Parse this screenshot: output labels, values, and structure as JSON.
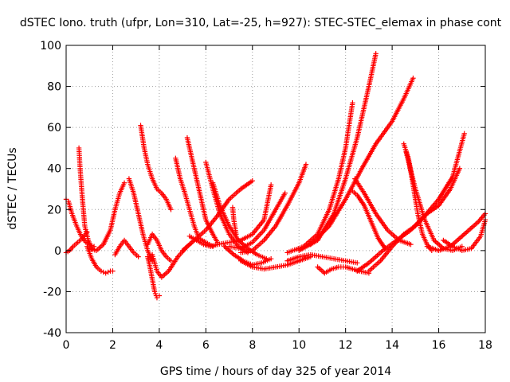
{
  "chart_data": {
    "type": "scatter",
    "title": "dSTEC Iono. truth (ufpr, Lon=310, Lat=-25, h=927): STEC-STEC_elemax in phase cont",
    "xlabel": "GPS time / hours of day 325 of year 2014",
    "ylabel": "dSTEC  / TECUs",
    "xlim": [
      0,
      18
    ],
    "ylim": [
      -40,
      100
    ],
    "x_ticks": [
      "0",
      "2",
      "4",
      "6",
      "8",
      "10",
      "12",
      "14",
      "16",
      "18"
    ],
    "y_ticks": [
      "-40",
      "-20",
      "0",
      "20",
      "40",
      "60",
      "80",
      "100"
    ],
    "grid": true,
    "marker": "plus",
    "color": "#ff0000",
    "series": [
      {
        "x": [
          0.0,
          0.1,
          0.25,
          0.45,
          0.65,
          0.85,
          1.0,
          1.2
        ],
        "y": [
          25,
          24,
          18,
          12,
          7,
          4,
          3,
          2
        ]
      },
      {
        "x": [
          0.0,
          0.15,
          0.3,
          0.5,
          0.7,
          0.9
        ],
        "y": [
          -1,
          0,
          2,
          4,
          6,
          9
        ]
      },
      {
        "x": [
          0.55,
          0.6,
          0.7,
          0.8,
          0.95,
          1.1
        ],
        "y": [
          50,
          40,
          25,
          12,
          5,
          1
        ]
      },
      {
        "x": [
          0.9,
          1.1,
          1.3,
          1.5,
          1.7,
          1.9,
          2.0
        ],
        "y": [
          2,
          -4,
          -8,
          -10,
          -11,
          -10,
          -10
        ]
      },
      {
        "x": [
          1.0,
          1.3,
          1.6,
          1.9,
          2.1,
          2.3,
          2.5
        ],
        "y": [
          1,
          0,
          3,
          10,
          20,
          28,
          33
        ]
      },
      {
        "x": [
          2.1,
          2.3,
          2.5,
          2.7,
          2.9,
          3.1
        ],
        "y": [
          -2,
          2,
          5,
          2,
          -1,
          -3
        ]
      },
      {
        "x": [
          2.7,
          2.9,
          3.1,
          3.3,
          3.5,
          3.7
        ],
        "y": [
          35,
          28,
          18,
          8,
          0,
          -5
        ]
      },
      {
        "x": [
          3.2,
          3.35,
          3.5,
          3.7,
          3.9,
          4.1,
          4.3,
          4.5
        ],
        "y": [
          61,
          50,
          42,
          35,
          30,
          28,
          25,
          20
        ]
      },
      {
        "x": [
          3.5,
          3.6,
          3.7,
          3.8,
          3.9,
          4.0
        ],
        "y": [
          -3,
          -8,
          -14,
          -20,
          -23,
          -22
        ]
      },
      {
        "x": [
          3.5,
          3.7,
          3.9,
          4.1,
          4.3,
          4.5
        ],
        "y": [
          3,
          8,
          5,
          0,
          -3,
          -5
        ]
      },
      {
        "x": [
          3.7,
          3.9,
          4.1,
          4.4,
          4.8,
          5.2,
          5.5
        ],
        "y": [
          -2,
          -10,
          -13,
          -10,
          -3,
          2,
          5
        ]
      },
      {
        "x": [
          4.7,
          4.9,
          5.1,
          5.3,
          5.5,
          5.7,
          6.0,
          6.3
        ],
        "y": [
          45,
          35,
          28,
          20,
          12,
          6,
          4,
          2
        ]
      },
      {
        "x": [
          5.2,
          5.4,
          5.6,
          5.8,
          6.0,
          6.3,
          6.5
        ],
        "y": [
          55,
          45,
          35,
          25,
          15,
          8,
          4
        ]
      },
      {
        "x": [
          5.3,
          5.6,
          5.9,
          6.2,
          6.5
        ],
        "y": [
          7,
          5,
          3,
          2,
          3
        ]
      },
      {
        "x": [
          5.0,
          5.5,
          6.0,
          6.5,
          7.0,
          7.5,
          8.0
        ],
        "y": [
          0,
          5,
          10,
          17,
          25,
          30,
          34
        ]
      },
      {
        "x": [
          6.0,
          6.3,
          6.6,
          7.0,
          7.4,
          7.8
        ],
        "y": [
          43,
          30,
          18,
          8,
          2,
          -1
        ]
      },
      {
        "x": [
          6.3,
          6.6,
          7.0,
          7.4,
          7.8,
          8.2,
          8.6
        ],
        "y": [
          33,
          22,
          12,
          5,
          1,
          -2,
          -4
        ]
      },
      {
        "x": [
          6.8,
          7.2,
          7.6,
          8.0,
          8.4,
          8.8
        ],
        "y": [
          2,
          -2,
          -5,
          -7,
          -6,
          -4
        ]
      },
      {
        "x": [
          7.15,
          7.2,
          7.3
        ],
        "y": [
          21,
          15,
          8
        ]
      },
      {
        "x": [
          6.5,
          7.0,
          7.5,
          8.0,
          8.5,
          8.8
        ],
        "y": [
          3,
          4,
          5,
          8,
          15,
          32
        ]
      },
      {
        "x": [
          7.0,
          7.5,
          8.0,
          8.5,
          9.0,
          9.4
        ],
        "y": [
          2,
          1,
          4,
          10,
          20,
          28
        ]
      },
      {
        "x": [
          7.5,
          8.0,
          8.5,
          9.0,
          9.5,
          10.0,
          10.3
        ],
        "y": [
          -1,
          0,
          5,
          12,
          22,
          33,
          42
        ]
      },
      {
        "x": [
          7.5,
          8.0,
          8.5,
          9.0,
          9.5,
          10.0,
          10.5
        ],
        "y": [
          -5,
          -8,
          -9,
          -8,
          -7,
          -5,
          -3
        ]
      },
      {
        "x": [
          9.5,
          10.0,
          10.5,
          11.0,
          11.5,
          12.0,
          12.5
        ],
        "y": [
          -5,
          -3,
          -2,
          -3,
          -4,
          -5,
          -6
        ]
      },
      {
        "x": [
          10.8,
          11.1,
          11.4,
          11.7,
          12.0,
          12.3,
          12.6,
          13.0
        ],
        "y": [
          -8,
          -11,
          -9,
          -8,
          -8,
          -9,
          -10,
          -11
        ]
      },
      {
        "x": [
          9.5,
          10.2,
          10.8,
          11.3,
          11.7,
          12.0,
          12.3
        ],
        "y": [
          -1,
          2,
          8,
          20,
          35,
          50,
          72
        ]
      },
      {
        "x": [
          10.0,
          10.8,
          11.5,
          12.0,
          12.5,
          13.0,
          13.3
        ],
        "y": [
          0,
          5,
          18,
          35,
          55,
          80,
          96
        ]
      },
      {
        "x": [
          10.5,
          11.3,
          12.0,
          12.7,
          13.3,
          14.0,
          14.5,
          14.9
        ],
        "y": [
          3,
          12,
          25,
          40,
          52,
          63,
          74,
          84
        ]
      },
      {
        "x": [
          12.3,
          12.5,
          12.8,
          13.1,
          13.4,
          13.7
        ],
        "y": [
          29,
          27,
          22,
          14,
          6,
          1
        ]
      },
      {
        "x": [
          12.4,
          12.8,
          13.3,
          13.8,
          14.3,
          14.8
        ],
        "y": [
          35,
          28,
          18,
          10,
          5,
          3
        ]
      },
      {
        "x": [
          12.5,
          13.0,
          13.6,
          14.2,
          14.8,
          15.4,
          16.0,
          16.6,
          17.1
        ],
        "y": [
          -10,
          -6,
          0,
          5,
          10,
          17,
          25,
          36,
          57
        ]
      },
      {
        "x": [
          13.0,
          13.5,
          14.0,
          14.5,
          15.0,
          15.5,
          16.0,
          16.5,
          16.9
        ],
        "y": [
          -10,
          -5,
          2,
          8,
          12,
          18,
          22,
          30,
          40
        ]
      },
      {
        "x": [
          14.5,
          14.7,
          14.9,
          15.1,
          15.3,
          15.5,
          15.7
        ],
        "y": [
          52,
          45,
          32,
          18,
          8,
          3,
          0
        ]
      },
      {
        "x": [
          14.6,
          15.0,
          15.4,
          15.8,
          16.2,
          16.6,
          17.0
        ],
        "y": [
          48,
          30,
          15,
          5,
          1,
          0,
          2
        ]
      },
      {
        "x": [
          15.5,
          16.0,
          16.5,
          16.9,
          17.3,
          17.7,
          18.0
        ],
        "y": [
          2,
          0,
          2,
          6,
          10,
          14,
          18
        ]
      },
      {
        "x": [
          16.2,
          16.6,
          17.0,
          17.4,
          17.8,
          18.0
        ],
        "y": [
          5,
          2,
          0,
          1,
          7,
          15
        ]
      }
    ]
  }
}
